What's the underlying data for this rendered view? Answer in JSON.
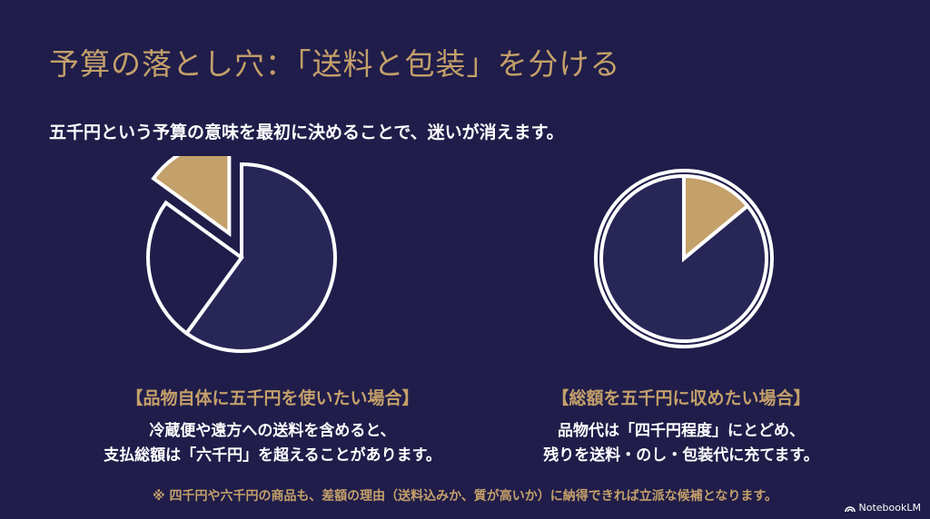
{
  "title": "予算の落とし穴：「送料と包装」を分ける",
  "subtitle": "五千円という予算の意味を最初に決めることで、迷いが消えます。",
  "colors": {
    "background": "#201d4a",
    "gold": "#c4a06a",
    "navy_fill": "#282657",
    "white": "#ffffff"
  },
  "left": {
    "heading": "【品物自体に五千円を使いたい場合】",
    "line1": "冷蔵便や遠方への送料を含めると、",
    "line2": "支払総額は「六千円」を超えることがあります。"
  },
  "right": {
    "heading": "【総額を五千円に収めたい場合】",
    "line1": "品物代は「四千円程度」にとどめ、",
    "line2": "残りを送料・のし・包装代に充てます。"
  },
  "footnote": "※ 四千円や六千円の商品も、差額の理由（送料込みか、質が高いか）に納得できれば立派な候補となります。",
  "brand": {
    "icon": "notebooklm-logo-icon",
    "label": "NotebookLM"
  },
  "chart_data": [
    {
      "type": "pie",
      "slices": [
        {
          "value": 60,
          "style": "navy",
          "exploded": false
        },
        {
          "value": 25,
          "style": "empty",
          "exploded": false
        },
        {
          "value": 15,
          "style": "gold",
          "exploded": true
        }
      ]
    },
    {
      "type": "pie",
      "slices": [
        {
          "value": 14,
          "style": "gold",
          "exploded": false
        },
        {
          "value": 86,
          "style": "navy",
          "exploded": false
        }
      ]
    }
  ]
}
